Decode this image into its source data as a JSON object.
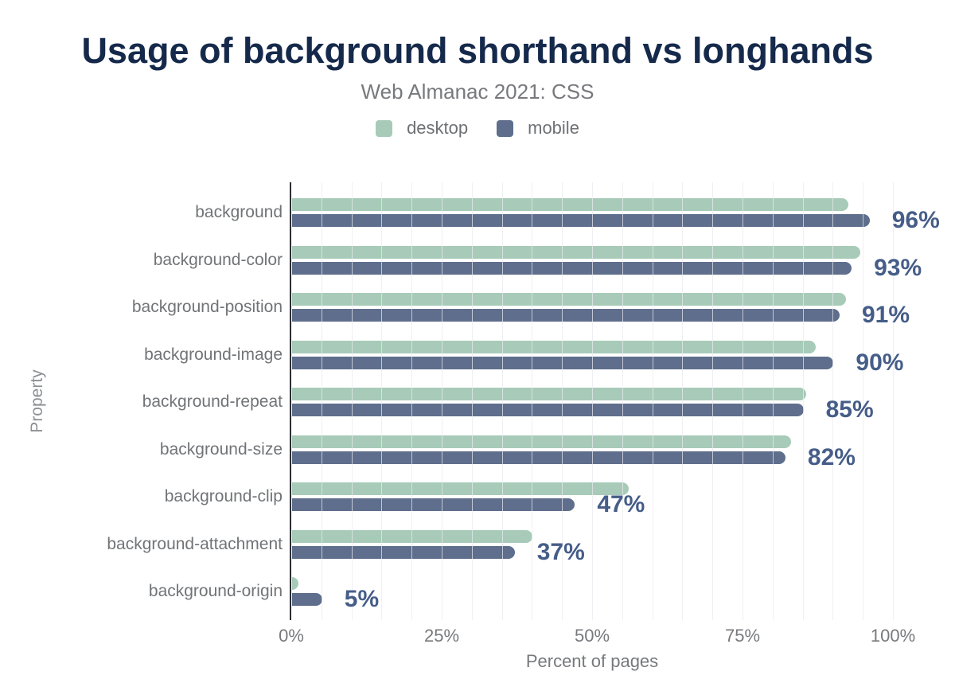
{
  "title": "Usage of background shorthand vs longhands",
  "subtitle": "Web Almanac 2021: CSS",
  "legend": [
    {
      "label": "desktop",
      "color_key": "desktop_bar"
    },
    {
      "label": "mobile",
      "color_key": "mobile_bar"
    }
  ],
  "chart_data": {
    "type": "bar",
    "orientation": "horizontal",
    "title": "Usage of background shorthand vs longhands",
    "subtitle": "Web Almanac 2021: CSS",
    "xlabel": "Percent of pages",
    "ylabel": "Property",
    "xlim": [
      0,
      100
    ],
    "x_ticks": [
      "0%",
      "25%",
      "50%",
      "75%",
      "100%"
    ],
    "x_tick_values": [
      0,
      25,
      50,
      75,
      100
    ],
    "gridline_step_percent": 5,
    "grid": "vertical-minor-lines",
    "legend_position": "top-center",
    "categories": [
      "background",
      "background-color",
      "background-position",
      "background-image",
      "background-repeat",
      "background-size",
      "background-clip",
      "background-attachment",
      "background-origin"
    ],
    "series": [
      {
        "name": "desktop",
        "values": [
          92.5,
          94.5,
          92,
          87,
          85.5,
          83,
          56,
          40,
          1
        ]
      },
      {
        "name": "mobile",
        "values": [
          96,
          93,
          91,
          90,
          85,
          82,
          47,
          37,
          5
        ]
      }
    ],
    "data_labels": [
      "96%",
      "93%",
      "91%",
      "90%",
      "85%",
      "82%",
      "47%",
      "37%",
      "5%"
    ],
    "data_labels_series": "mobile"
  },
  "colors": {
    "desktop_bar": "#a7cbb8",
    "mobile_bar": "#5e6e8c",
    "value_label": "#455d88",
    "title": "#15294b",
    "subtitle_text": "#77797c",
    "category_text": "#717477",
    "axis_line": "#2d2f33",
    "gridline": "rgba(234,234,240,0.72)",
    "background": "#ffffff"
  }
}
